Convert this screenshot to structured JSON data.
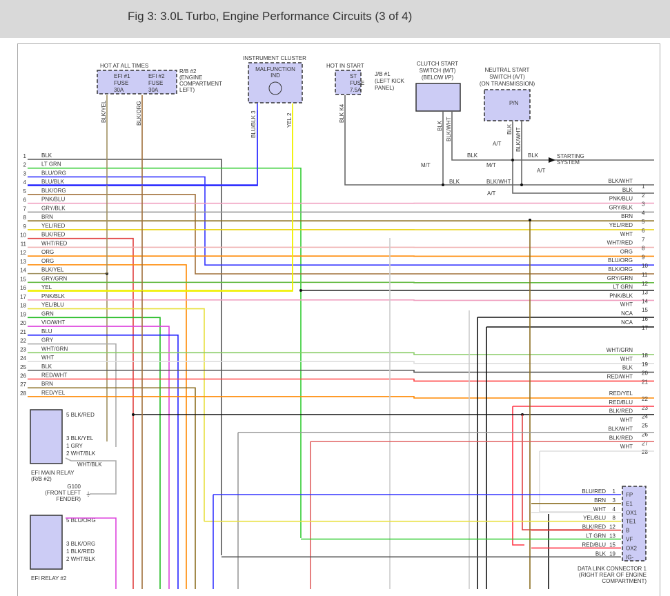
{
  "title": "Fig 3: 3.0L Turbo, Engine Performance Circuits (3 of 4)",
  "components": {
    "hot_all": "HOT AT ALL TIMES",
    "efi1": [
      "EFI #1",
      "FUSE",
      "30A"
    ],
    "efi2": [
      "EFI #2",
      "FUSE",
      "30A"
    ],
    "rb2": [
      "R/B #2",
      "(ENGINE",
      "COMPARTMENT",
      "LEFT)"
    ],
    "cluster": "INSTRUMENT CLUSTER",
    "mil": [
      "MALFUNCTION",
      "IND"
    ],
    "hot_start": "HOT IN START",
    "st": [
      "ST",
      "FUSE",
      "7.5A"
    ],
    "jb1": [
      "J/B #1",
      "(LEFT KICK",
      "PANEL)"
    ],
    "clutch": [
      "CLUTCH START",
      "SWITCH (M/T)",
      "(BELOW I/P)"
    ],
    "neutral": [
      "NEUTRAL START",
      "SWITCH (A/T)",
      "(ON TRANSMISSION)"
    ],
    "pn": "P/N",
    "starting": [
      "STARTING",
      "SYSTEM"
    ],
    "efi_main": [
      "EFI MAIN RELAY",
      "(R/B #2)"
    ],
    "efi_relay2": "EFI RELAY #2",
    "g100": [
      "G100",
      "(FRONT LEFT",
      "FENDER)"
    ],
    "dlc": [
      "DATA LINK CONNECTOR 1",
      "(RIGHT REAR OF ENGINE",
      "COMPARTMENT)"
    ]
  },
  "vertical_labels": [
    "BLK/YEL",
    "BLK/ORG",
    "BLU/BLK  3",
    "YEL  2",
    "BLK  K4",
    "BLK",
    "BLK/WHT",
    "BLK",
    "BLK/WHT"
  ],
  "start_labels": [
    "BLK",
    "BLK",
    "BLK/WHT",
    "BLK",
    "M/T",
    "M/T",
    "A/T",
    "A/T",
    "A/T"
  ],
  "left_wires": [
    {
      "pin": "1",
      "label": "BLK",
      "color": "#555555"
    },
    {
      "pin": "2",
      "label": "LT GRN",
      "color": "#33cc33"
    },
    {
      "pin": "3",
      "label": "BLU/ORG",
      "color": "#3333ff"
    },
    {
      "pin": "4",
      "label": "BLU/BLK",
      "color": "#3333ff"
    },
    {
      "pin": "5",
      "label": "BLK/ORG",
      "color": "#a0703a"
    },
    {
      "pin": "6",
      "label": "PNK/BLU",
      "color": "#f0a0c0"
    },
    {
      "pin": "7",
      "label": "GRY/BLK",
      "color": "#999999"
    },
    {
      "pin": "8",
      "label": "BRN",
      "color": "#8a6d1f"
    },
    {
      "pin": "9",
      "label": "YEL/RED",
      "color": "#e8d000"
    },
    {
      "pin": "10",
      "label": "BLK/RED",
      "color": "#e04040"
    },
    {
      "pin": "11",
      "label": "WHT/RED",
      "color": "#f0b0b0"
    },
    {
      "pin": "12",
      "label": "ORG",
      "color": "#ff8800"
    },
    {
      "pin": "13",
      "label": "ORG",
      "color": "#ff8800"
    },
    {
      "pin": "14",
      "label": "BLK/YEL",
      "color": "#a09060"
    },
    {
      "pin": "15",
      "label": "GRY/GRN",
      "color": "#66bb44"
    },
    {
      "pin": "16",
      "label": "YEL",
      "color": "#f0f000"
    },
    {
      "pin": "17",
      "label": "PNK/BLK",
      "color": "#f0a0c0"
    },
    {
      "pin": "18",
      "label": "YEL/BLU",
      "color": "#e8e040"
    },
    {
      "pin": "19",
      "label": "GRN",
      "color": "#22bb22"
    },
    {
      "pin": "20",
      "label": "VIO/WHT",
      "color": "#dd44dd"
    },
    {
      "pin": "21",
      "label": "BLU",
      "color": "#2222ff"
    },
    {
      "pin": "22",
      "label": "GRY",
      "color": "#aaaaaa"
    },
    {
      "pin": "23",
      "label": "WHT/GRN",
      "color": "#88cc66"
    },
    {
      "pin": "24",
      "label": "WHT",
      "color": "#dddddd"
    },
    {
      "pin": "25",
      "label": "BLK",
      "color": "#555555"
    },
    {
      "pin": "26",
      "label": "RED/WHT",
      "color": "#ff4444"
    },
    {
      "pin": "27",
      "label": "BRN",
      "color": "#8a6d1f"
    },
    {
      "pin": "28",
      "label": "RED/YEL",
      "color": "#ff8800"
    }
  ],
  "right_wires": [
    {
      "pin": "1",
      "label": "BLK/WHT",
      "color": "#666666"
    },
    {
      "pin": "2",
      "label": "BLK",
      "color": "#444444"
    },
    {
      "pin": "3",
      "label": "PNK/BLU",
      "color": "#c080ff"
    },
    {
      "pin": "4",
      "label": "GRY/BLK",
      "color": "#aaaaaa"
    },
    {
      "pin": "5",
      "label": "BRN",
      "color": "#8a6d1f"
    },
    {
      "pin": "6",
      "label": "YEL/RED",
      "color": "#e8c000"
    },
    {
      "pin": "7",
      "label": "WHT",
      "color": "#dddddd"
    },
    {
      "pin": "8",
      "label": "WHT/RED",
      "color": "#f0b0b0"
    },
    {
      "pin": "9",
      "label": "ORG",
      "color": "#ff8800"
    },
    {
      "pin": "10",
      "label": "BLU/ORG",
      "color": "#3333ff"
    },
    {
      "pin": "11",
      "label": "BLK/ORG",
      "color": "#a0703a"
    },
    {
      "pin": "12",
      "label": "GRY/GRN",
      "color": "#66bb44"
    },
    {
      "pin": "13",
      "label": "LT GRN",
      "color": "#222222"
    },
    {
      "pin": "14",
      "label": "PNK/BLK",
      "color": "#f0a0c0"
    },
    {
      "pin": "15",
      "label": "WHT",
      "color": "#dddddd"
    },
    {
      "pin": "16",
      "label": "NCA",
      "color": "#111111"
    },
    {
      "pin": "17",
      "label": "NCA",
      "color": "#111111"
    },
    {
      "pin": "18",
      "label": "WHT/GRN",
      "color": "#66bb44"
    },
    {
      "pin": "19",
      "label": "WHT",
      "color": "#dddddd"
    },
    {
      "pin": "20",
      "label": "BLK",
      "color": "#555555"
    },
    {
      "pin": "21",
      "label": "RED/WHT",
      "color": "#ff4444"
    },
    {
      "pin": "22",
      "label": "RED/YEL",
      "color": "#ff8800"
    },
    {
      "pin": "23",
      "label": "RED/BLU",
      "color": "#ff3344"
    },
    {
      "pin": "24",
      "label": "BLK/RED",
      "color": "#111111"
    },
    {
      "pin": "25",
      "label": "WHT",
      "color": "#dddddd"
    },
    {
      "pin": "26",
      "label": "BLK/WHT",
      "color": "#999999"
    },
    {
      "pin": "27",
      "label": "BLK/RED",
      "color": "#e06060"
    },
    {
      "pin": "28",
      "label": "WHT",
      "color": "#dddddd"
    }
  ],
  "relay_main_pins": [
    "5  BLK/RED",
    "3  BLK/YEL",
    "1  GRY",
    "2  WHT/BLK"
  ],
  "relay_main_gnd": "WHT/BLK",
  "relay2_pins": [
    "5  BLU/ORG",
    "3  BLK/ORG",
    "1  BLK/RED",
    "2  WHT/BLK"
  ],
  "dlc_pins": [
    {
      "wire": "BLU/RED",
      "pin": "1",
      "term": "FP",
      "color": "#3333ff"
    },
    {
      "wire": "BRN",
      "pin": "3",
      "term": "E1",
      "color": "#8a6d1f"
    },
    {
      "wire": "WHT",
      "pin": "4",
      "term": "OX1",
      "color": "#dddddd"
    },
    {
      "wire": "YEL/BLU",
      "pin": "8",
      "term": "TE1",
      "color": "#e8e040"
    },
    {
      "wire": "BLK/RED",
      "pin": "12",
      "term": "B",
      "color": "#e04040"
    },
    {
      "wire": "LT GRN",
      "pin": "13",
      "term": "VF",
      "color": "#33cc33"
    },
    {
      "wire": "RED/BLU",
      "pin": "15",
      "term": "OX2",
      "color": "#ff3344"
    },
    {
      "wire": "BLK",
      "pin": "19",
      "term": "IG-",
      "color": "#555555"
    }
  ]
}
